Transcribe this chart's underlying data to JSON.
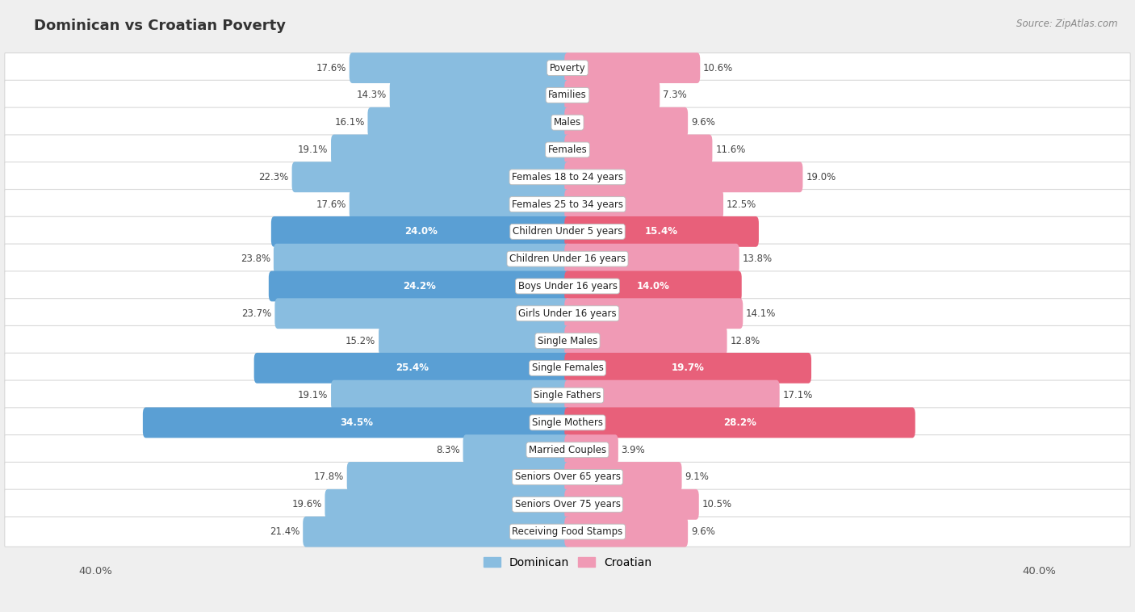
{
  "title": "Dominican vs Croatian Poverty",
  "source": "Source: ZipAtlas.com",
  "categories": [
    "Poverty",
    "Families",
    "Males",
    "Females",
    "Females 18 to 24 years",
    "Females 25 to 34 years",
    "Children Under 5 years",
    "Children Under 16 years",
    "Boys Under 16 years",
    "Girls Under 16 years",
    "Single Males",
    "Single Females",
    "Single Fathers",
    "Single Mothers",
    "Married Couples",
    "Seniors Over 65 years",
    "Seniors Over 75 years",
    "Receiving Food Stamps"
  ],
  "dominican": [
    17.6,
    14.3,
    16.1,
    19.1,
    22.3,
    17.6,
    24.0,
    23.8,
    24.2,
    23.7,
    15.2,
    25.4,
    19.1,
    34.5,
    8.3,
    17.8,
    19.6,
    21.4
  ],
  "croatian": [
    10.6,
    7.3,
    9.6,
    11.6,
    19.0,
    12.5,
    15.4,
    13.8,
    14.0,
    14.1,
    12.8,
    19.7,
    17.1,
    28.2,
    3.9,
    9.1,
    10.5,
    9.6
  ],
  "dominican_color": "#89bde0",
  "croatian_color": "#f09ab5",
  "dominican_highlight_color": "#5a9fd4",
  "croatian_highlight_color": "#e8607a",
  "highlight_rows": [
    6,
    8,
    11,
    13
  ],
  "bg_color": "#efefef",
  "row_bg_color": "#ffffff",
  "row_alt_bg_color": "#f7f7f7",
  "axis_max": 40.0,
  "bar_height": 0.62,
  "label_fontsize": 8.5,
  "title_fontsize": 13,
  "legend_color_dominican": "#89bde0",
  "legend_color_croatian": "#f09ab5"
}
